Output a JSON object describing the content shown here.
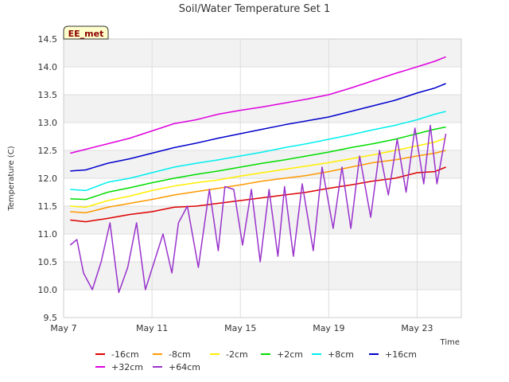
{
  "chart_data": {
    "type": "line",
    "title": "Soil/Water Temperature Set 1",
    "xlabel": "Time",
    "ylabel": "Temperature (C)",
    "badge": "EE_met",
    "ylim": [
      9.5,
      14.5
    ],
    "xlim": [
      0,
      18
    ],
    "x_tick_labels": [
      "May 7",
      "May 11",
      "May 15",
      "May 19",
      "May 23"
    ],
    "x_tick_days": [
      0,
      4,
      8,
      12,
      16
    ],
    "y_ticks": [
      "9.5",
      "10.0",
      "10.5",
      "11.0",
      "11.5",
      "12.0",
      "12.5",
      "13.0",
      "13.5",
      "14.0",
      "14.5"
    ],
    "grid": true,
    "legend_position": "bottom",
    "series": [
      {
        "name": "-16cm",
        "color": "#dd0000",
        "x": [
          0.3,
          1,
          2,
          3,
          4,
          5,
          6,
          7,
          8,
          9,
          10,
          11,
          12,
          13,
          14,
          15,
          16,
          16.8,
          17.3
        ],
        "values": [
          11.25,
          11.22,
          11.28,
          11.35,
          11.4,
          11.48,
          11.5,
          11.55,
          11.6,
          11.65,
          11.7,
          11.75,
          11.82,
          11.88,
          11.95,
          12.0,
          12.1,
          12.12,
          12.2
        ]
      },
      {
        "name": "-8cm",
        "color": "#ff9900",
        "x": [
          0.3,
          1,
          2,
          3,
          4,
          5,
          6,
          7,
          8,
          9,
          10,
          11,
          12,
          13,
          14,
          15,
          16,
          16.8,
          17.3
        ],
        "values": [
          11.4,
          11.38,
          11.48,
          11.55,
          11.62,
          11.7,
          11.76,
          11.82,
          11.88,
          11.95,
          12.0,
          12.05,
          12.12,
          12.2,
          12.28,
          12.33,
          12.4,
          12.45,
          12.5
        ]
      },
      {
        "name": "-2cm",
        "color": "#ffee00",
        "x": [
          0.3,
          1,
          2,
          3,
          4,
          5,
          6,
          7,
          8,
          9,
          10,
          11,
          12,
          13,
          14,
          15,
          16,
          16.8,
          17.3
        ],
        "values": [
          11.5,
          11.48,
          11.6,
          11.68,
          11.78,
          11.86,
          11.92,
          11.97,
          12.04,
          12.1,
          12.16,
          12.22,
          12.28,
          12.35,
          12.42,
          12.5,
          12.58,
          12.65,
          12.72
        ]
      },
      {
        "name": "+2cm",
        "color": "#00dd00",
        "x": [
          0.3,
          1,
          2,
          3,
          4,
          5,
          6,
          7,
          8,
          9,
          10,
          11,
          12,
          13,
          14,
          15,
          16,
          16.8,
          17.3
        ],
        "values": [
          11.63,
          11.62,
          11.75,
          11.83,
          11.92,
          12.0,
          12.07,
          12.13,
          12.2,
          12.27,
          12.33,
          12.4,
          12.47,
          12.55,
          12.62,
          12.7,
          12.8,
          12.88,
          12.92
        ]
      },
      {
        "name": "+8cm",
        "color": "#00eeee",
        "x": [
          0.3,
          1,
          2,
          3,
          4,
          5,
          6,
          7,
          8,
          9,
          10,
          11,
          12,
          13,
          14,
          15,
          16,
          16.8,
          17.3
        ],
        "values": [
          11.8,
          11.78,
          11.93,
          12.0,
          12.1,
          12.2,
          12.27,
          12.33,
          12.4,
          12.47,
          12.55,
          12.62,
          12.7,
          12.78,
          12.87,
          12.95,
          13.05,
          13.15,
          13.2
        ]
      },
      {
        "name": "+16cm",
        "color": "#0000cc",
        "x": [
          0.3,
          1,
          2,
          3,
          4,
          5,
          6,
          7,
          8,
          9,
          10,
          11,
          12,
          13,
          14,
          15,
          16,
          16.8,
          17.3
        ],
        "values": [
          12.13,
          12.15,
          12.27,
          12.35,
          12.45,
          12.55,
          12.63,
          12.72,
          12.8,
          12.88,
          12.96,
          13.03,
          13.1,
          13.2,
          13.3,
          13.4,
          13.53,
          13.62,
          13.7
        ]
      },
      {
        "name": "+32cm",
        "color": "#dd00dd",
        "x": [
          0.3,
          1,
          2,
          3,
          4,
          5,
          6,
          7,
          8,
          9,
          10,
          11,
          12,
          13,
          14,
          15,
          16,
          16.8,
          17.3
        ],
        "values": [
          12.45,
          12.52,
          12.62,
          12.72,
          12.85,
          12.98,
          13.05,
          13.15,
          13.22,
          13.28,
          13.35,
          13.42,
          13.5,
          13.62,
          13.75,
          13.88,
          14.0,
          14.1,
          14.18
        ]
      },
      {
        "name": "+64cm",
        "color": "#9933cc",
        "x": [
          0.3,
          0.6,
          0.9,
          1.3,
          1.7,
          2.1,
          2.5,
          2.9,
          3.3,
          3.7,
          4.1,
          4.5,
          4.9,
          5.2,
          5.6,
          6.1,
          6.6,
          7.0,
          7.3,
          7.7,
          8.1,
          8.5,
          8.9,
          9.3,
          9.7,
          10.0,
          10.4,
          10.8,
          11.3,
          11.7,
          12.2,
          12.6,
          13.0,
          13.4,
          13.9,
          14.3,
          14.7,
          15.1,
          15.5,
          15.9,
          16.3,
          16.6,
          16.9,
          17.3
        ],
        "values": [
          10.8,
          10.9,
          10.3,
          10.0,
          10.5,
          11.2,
          9.95,
          10.4,
          11.2,
          10.0,
          10.5,
          11.0,
          10.3,
          11.2,
          11.5,
          10.4,
          11.8,
          10.7,
          11.85,
          11.8,
          10.8,
          11.8,
          10.5,
          11.8,
          10.6,
          11.85,
          10.6,
          11.9,
          10.7,
          12.2,
          11.1,
          12.2,
          11.1,
          12.4,
          11.3,
          12.5,
          11.7,
          12.7,
          11.75,
          12.9,
          11.9,
          12.95,
          11.9,
          12.8
        ]
      }
    ]
  }
}
